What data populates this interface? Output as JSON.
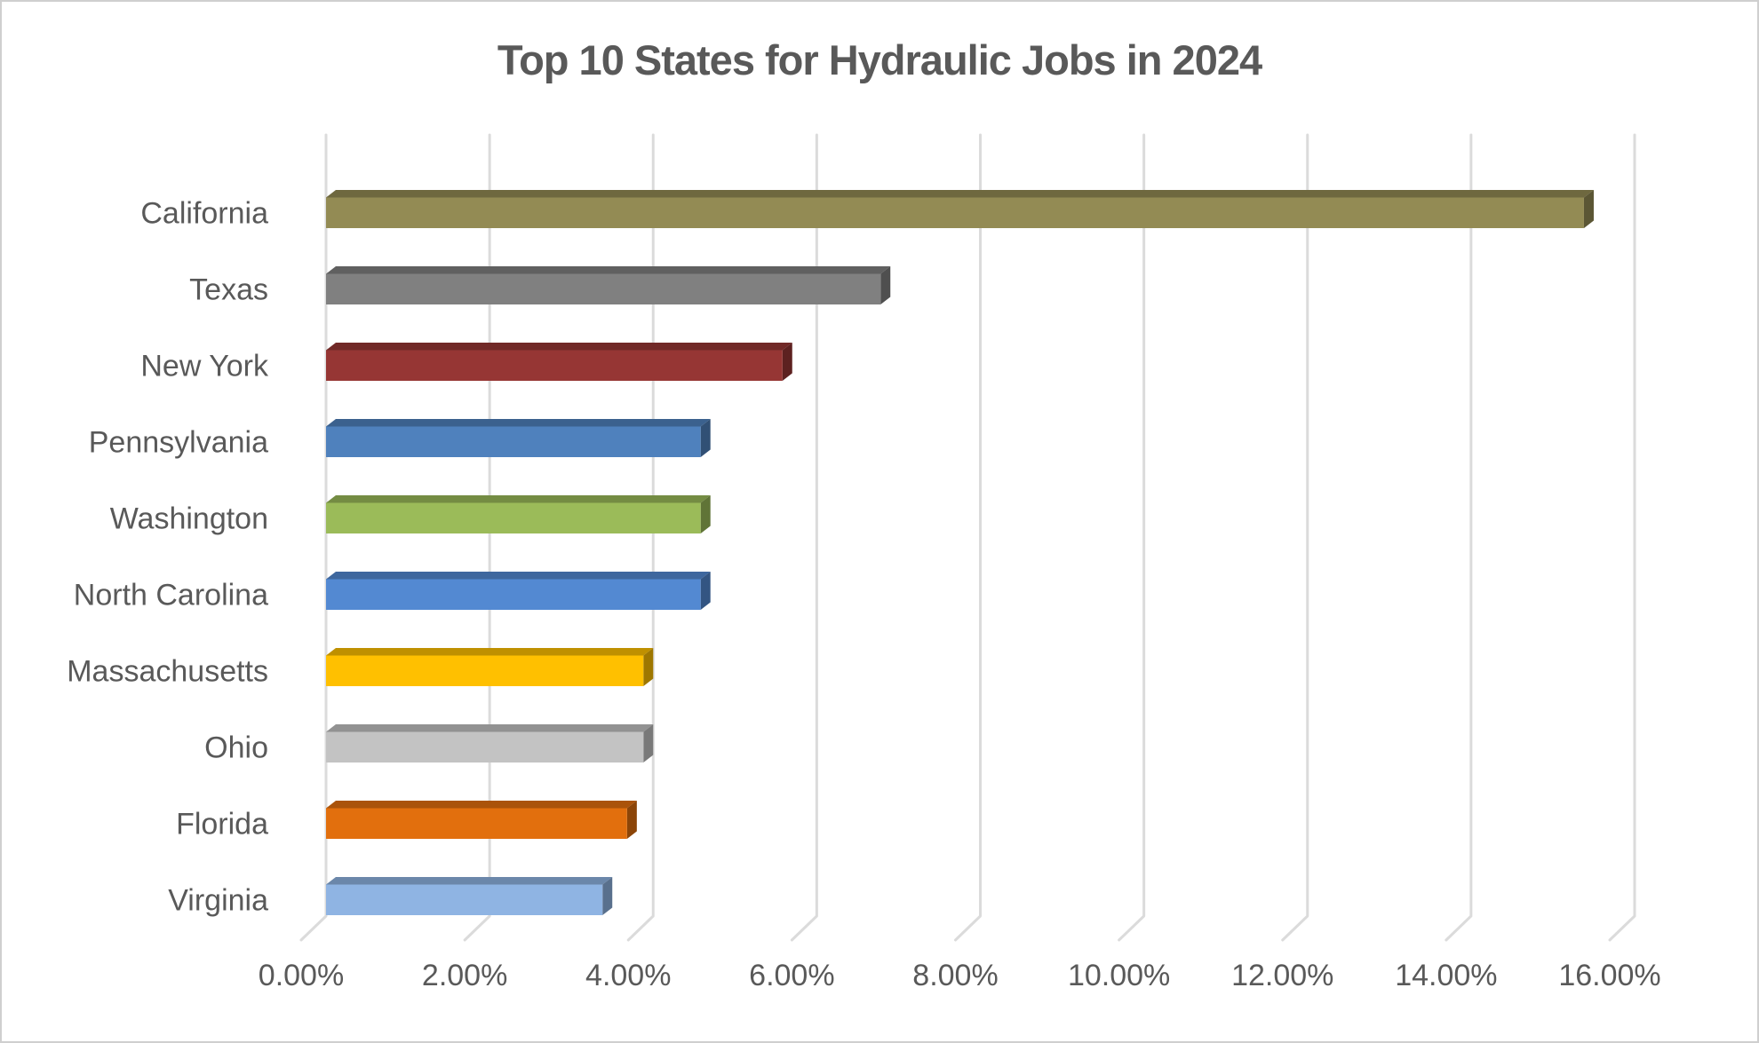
{
  "page": {
    "background_color": "#ffffff",
    "border_color": "#cfcfcf",
    "text_color": "#595959",
    "gridline_color": "#dbdbdb"
  },
  "chart_data": {
    "type": "bar",
    "orientation": "horizontal",
    "style": "3d-bevel",
    "title": "Top 10 States for Hydraulic Jobs in 2024",
    "categories": [
      "California",
      "Texas",
      "New York",
      "Pennsylvania",
      "Washington",
      "North Carolina",
      "Massachusetts",
      "Ohio",
      "Florida",
      "Virginia"
    ],
    "values": [
      15.5,
      6.9,
      5.7,
      4.7,
      4.7,
      4.7,
      4.0,
      4.0,
      3.8,
      3.5
    ],
    "value_unit": "%",
    "bar_colors": [
      "#938B54",
      "#808080",
      "#963634",
      "#4F81BD",
      "#9BBB59",
      "#5389D2",
      "#FFC000",
      "#C3C3C3",
      "#E26F0D",
      "#8FB4E3"
    ],
    "xlabel": "",
    "ylabel": "",
    "x_axis": {
      "min": 0,
      "max": 16,
      "tick_step": 2,
      "tick_labels": [
        "0.00%",
        "2.00%",
        "4.00%",
        "6.00%",
        "8.00%",
        "10.00%",
        "12.00%",
        "14.00%",
        "16.00%"
      ]
    },
    "grid": true,
    "legend": false
  }
}
